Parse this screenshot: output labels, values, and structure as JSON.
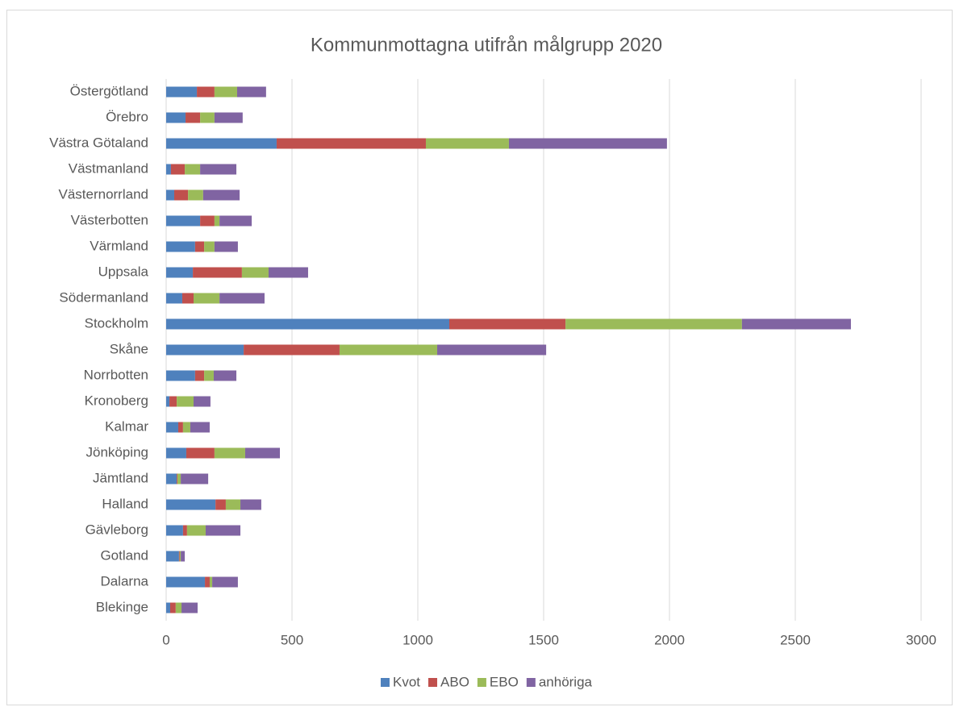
{
  "chart_data": {
    "type": "stacked-bar-horizontal",
    "title": "Kommunmottagna utifrån målgrupp 2020",
    "categories": [
      "Blekinge",
      "Dalarna",
      "Gotland",
      "Gävleborg",
      "Halland",
      "Jämtland",
      "Jönköping",
      "Kalmar",
      "Kronoberg",
      "Norrbotten",
      "Skåne",
      "Stockholm",
      "Södermanland",
      "Uppsala",
      "Värmland",
      "Västerbotten",
      "Västernorrland",
      "Västmanland",
      "Västra Götaland",
      "Örebro",
      "Östergötland"
    ],
    "series": [
      {
        "name": "Kvot",
        "color": "#4f81bd",
        "values": [
          16,
          154,
          51,
          67,
          196,
          42,
          80,
          48,
          13,
          115,
          308,
          1125,
          64,
          106,
          115,
          135,
          32,
          19,
          439,
          77,
          122
        ]
      },
      {
        "name": "ABO",
        "color": "#c0504d",
        "values": [
          22,
          19,
          3,
          16,
          41,
          3,
          112,
          19,
          29,
          36,
          381,
          462,
          45,
          195,
          36,
          57,
          55,
          55,
          593,
          58,
          70
        ]
      },
      {
        "name": "EBO",
        "color": "#9bbb59",
        "values": [
          23,
          10,
          4,
          74,
          58,
          13,
          122,
          29,
          67,
          38,
          388,
          701,
          103,
          106,
          41,
          20,
          60,
          61,
          330,
          57,
          90
        ]
      },
      {
        "name": "anhöriga",
        "color": "#8064a2",
        "values": [
          64,
          102,
          16,
          138,
          83,
          109,
          138,
          77,
          67,
          90,
          433,
          433,
          179,
          157,
          93,
          128,
          145,
          144,
          628,
          112,
          115
        ]
      }
    ],
    "xlim": [
      0,
      3000
    ],
    "xticks": [
      0,
      500,
      1000,
      1500,
      2000,
      2500,
      3000
    ],
    "grid": true,
    "legend": "bottom"
  }
}
